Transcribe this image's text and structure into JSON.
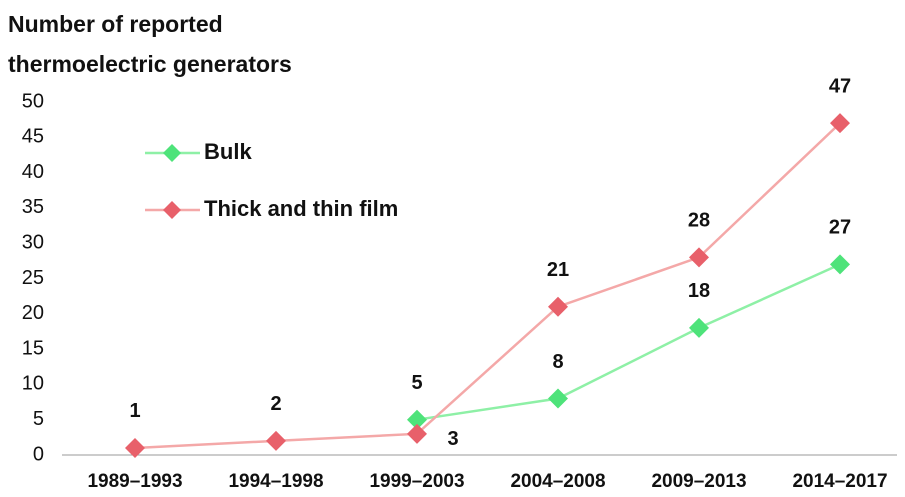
{
  "chart_data": {
    "type": "line",
    "title": [
      "Number of reported",
      "thermoelectric generators"
    ],
    "categories": [
      "1989–1993",
      "1994–1998",
      "1999–2003",
      "2004–2008",
      "2009–2013",
      "2014–2017"
    ],
    "series": [
      {
        "name": "Bulk",
        "color": "#4ee37a",
        "values": [
          null,
          null,
          5,
          8,
          18,
          27
        ]
      },
      {
        "name": "Thick and thin film",
        "color": "#e8606a",
        "values": [
          1,
          2,
          3,
          21,
          28,
          47
        ]
      }
    ],
    "ylim": [
      0,
      50
    ],
    "yticks": [
      0,
      5,
      10,
      15,
      20,
      25,
      30,
      35,
      40,
      45,
      50
    ],
    "legend": "upper left"
  }
}
